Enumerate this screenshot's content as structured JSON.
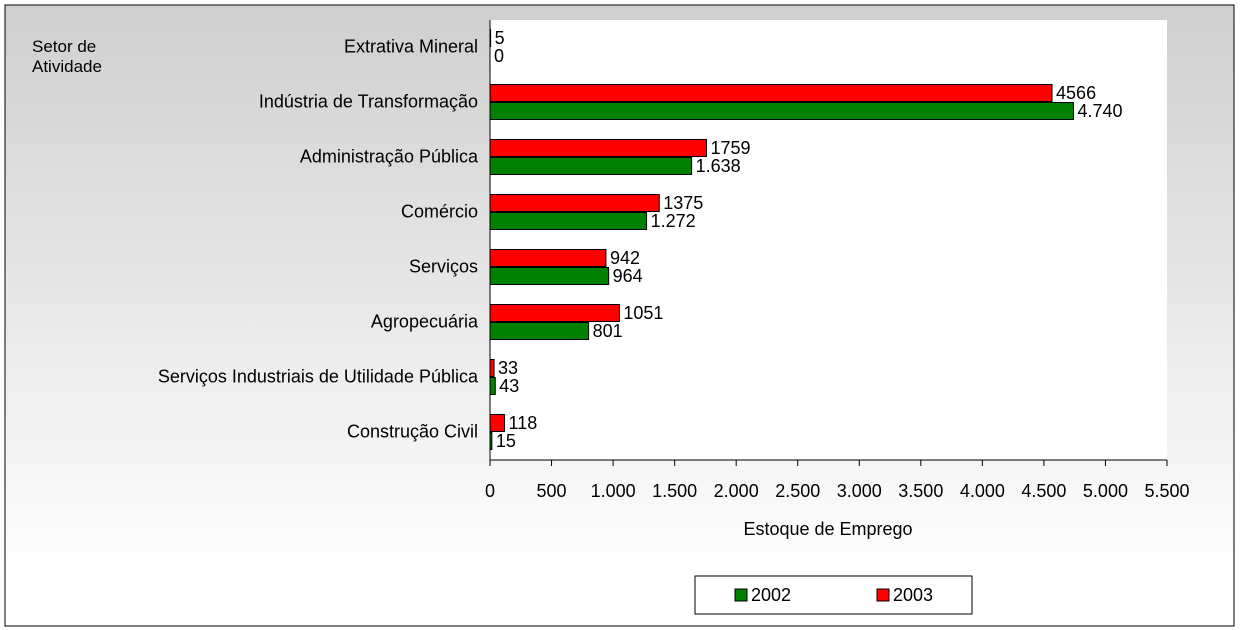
{
  "chart_data": {
    "type": "bar",
    "orientation": "horizontal",
    "y_label": "Setor de Atividade",
    "x_label": "Estoque de Emprego",
    "categories": [
      "Extrativa Mineral",
      "Indústria de Transformação",
      "Administração Pública",
      "Comércio",
      "Serviços",
      "Agropecuária",
      "Serviços Industriais de Utilidade Pública",
      "Construção Civil"
    ],
    "series": [
      {
        "name": "2003",
        "color": "#ff0000",
        "values": [
          5,
          4566,
          1759,
          1375,
          942,
          1051,
          33,
          118
        ]
      },
      {
        "name": "2002",
        "color": "#008000",
        "values": [
          0,
          4740,
          1638,
          1272,
          964,
          801,
          43,
          15
        ],
        "value_labels": [
          "0",
          "4.740",
          "1.638",
          "1.272",
          "964",
          "801",
          "43",
          "15"
        ]
      }
    ],
    "legend_order": [
      "2002",
      "2003"
    ],
    "xlim": [
      0,
      5500
    ],
    "xticks": [
      0,
      500,
      {
        "value": 1000,
        "label": "1.000"
      },
      {
        "value": 1500,
        "label": "1.500"
      },
      {
        "value": 2000,
        "label": "2.000"
      },
      {
        "value": 2500,
        "label": "2.500"
      },
      {
        "value": 3000,
        "label": "3.000"
      },
      {
        "value": 3500,
        "label": "3.500"
      },
      {
        "value": 4000,
        "label": "4.000"
      },
      {
        "value": 4500,
        "label": "4.500"
      },
      {
        "value": 5000,
        "label": "5.000"
      },
      {
        "value": 5500,
        "label": "5.500"
      }
    ],
    "legend": "bottom"
  }
}
